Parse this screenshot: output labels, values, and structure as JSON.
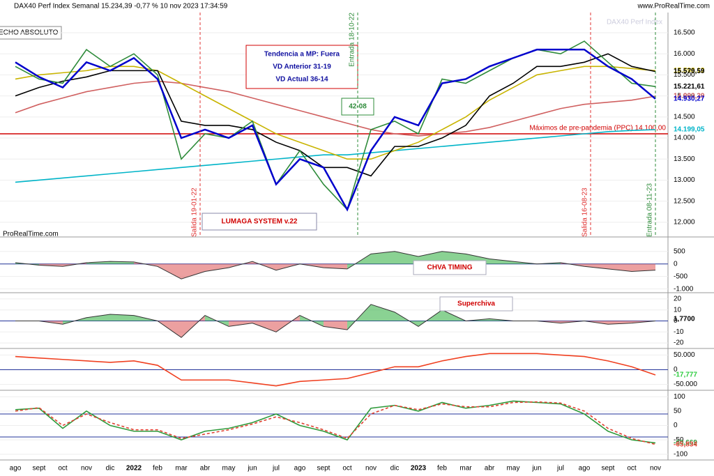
{
  "header": {
    "title": "DAX40 Perf Index Semanal 15.234,39 -0,77 % 10 nov 2023 17:34:59",
    "site": "www.ProRealTime.com",
    "watermark": "DAX40 Perf Index",
    "button": "ECHO ABSOLUTO",
    "credit": "ProRealTime.com"
  },
  "chart_data": [
    {
      "type": "line",
      "grid": true,
      "ylim": [
        11650,
        16980
      ],
      "yticks": [
        {
          "value": 16500,
          "label": "16.500"
        },
        {
          "value": 16000,
          "label": "16.000"
        },
        {
          "value": 15500,
          "label": "15.500"
        },
        {
          "value": 15000,
          "label": "15.000"
        },
        {
          "value": 14500,
          "label": "14.500"
        },
        {
          "value": 14000,
          "label": "14.000"
        },
        {
          "value": 13500,
          "label": "13.500"
        },
        {
          "value": 13000,
          "label": "13.000"
        },
        {
          "value": 12500,
          "label": "12.500"
        },
        {
          "value": 12000,
          "label": "12.000"
        }
      ],
      "series": [
        {
          "color": "#00b4c8",
          "values": [
            12950,
            13000,
            13050,
            13100,
            13150,
            13200,
            13250,
            13300,
            13350,
            13400,
            13450,
            13500,
            13550,
            13600,
            13600,
            13650,
            13700,
            13750,
            13800,
            13850,
            13900,
            13950,
            14000,
            14050,
            14100,
            14150,
            14180,
            14199.05
          ]
        },
        {
          "color": "#d06060",
          "values": [
            14600,
            14800,
            14950,
            15100,
            15200,
            15300,
            15350,
            15300,
            15200,
            15100,
            14950,
            14800,
            14650,
            14500,
            14350,
            14200,
            14100,
            14050,
            14100,
            14150,
            14250,
            14400,
            14550,
            14700,
            14800,
            14850,
            14900,
            14993.39
          ]
        },
        {
          "color": "#c8b400",
          "values": [
            15400,
            15500,
            15550,
            15600,
            15700,
            15700,
            15600,
            15300,
            15000,
            14700,
            14400,
            14100,
            13900,
            13700,
            13500,
            13500,
            13700,
            13900,
            14200,
            14500,
            14900,
            15200,
            15500,
            15600,
            15700,
            15700,
            15650,
            15598.12
          ]
        },
        {
          "color": "#000000",
          "values": [
            15000,
            15200,
            15350,
            15450,
            15600,
            15600,
            15600,
            14400,
            14300,
            14300,
            14200,
            13900,
            13700,
            13300,
            13300,
            13100,
            13800,
            13800,
            14000,
            14300,
            15000,
            15300,
            15700,
            15700,
            15800,
            16000,
            15700,
            15579.59
          ]
        },
        {
          "color": "#2e8b3a",
          "values": [
            15700,
            15400,
            15300,
            16100,
            15700,
            16000,
            15500,
            13500,
            14100,
            14000,
            14400,
            12900,
            13700,
            12900,
            12300,
            14200,
            14400,
            14100,
            15400,
            15300,
            15600,
            15900,
            16100,
            16000,
            16300,
            15800,
            15300,
            15221.61
          ]
        },
        {
          "color": "#0000cc",
          "values": [
            15800,
            15450,
            15200,
            15800,
            15600,
            15900,
            15400,
            14000,
            14200,
            14000,
            14300,
            12900,
            13500,
            13300,
            12300,
            13700,
            14500,
            14300,
            15300,
            15400,
            15700,
            15900,
            16100,
            16100,
            16100,
            15700,
            15400,
            14930.27
          ]
        }
      ],
      "tags": [
        {
          "value": 15598.12,
          "label": "15.598,12",
          "color": "#c8b400"
        },
        {
          "value": 15579.59,
          "label": "15.579,59",
          "color": "#000000"
        },
        {
          "value": 15221.61,
          "label": "15.221,61",
          "color": "#000000"
        },
        {
          "value": 14993.39,
          "label": "14.993,39",
          "color": "#d06060"
        },
        {
          "value": 14930.27,
          "label": "14.930,27",
          "color": "#0000cc"
        },
        {
          "value": 14199.05,
          "label": "14.199,05",
          "color": "#00b4c8"
        }
      ],
      "hline": {
        "value": 14100,
        "label": "Máximos de pre-pandemia (PPC) 14.100,00",
        "color": "#d00000"
      },
      "box": [
        "Tendencia a MP: Fuera",
        "VD Anterior 31-19",
        "VD Actual 36-14"
      ],
      "badge": "42-08",
      "system": "LUMAGA SYSTEM v.22",
      "events": [
        {
          "label": "Salida 19-01-22",
          "color": "#e03030"
        },
        {
          "label": "Entrada 18-10-22",
          "color": "#2e8b3a"
        },
        {
          "label": "Salida 16-08-23",
          "color": "#e03030"
        },
        {
          "label": "Entrada 08-11-23",
          "color": "#2e8b3a"
        }
      ]
    },
    {
      "type": "area",
      "title": "CHVA TIMING",
      "grid": true,
      "ylim": [
        -1150,
        1050
      ],
      "yticks": [
        500,
        0,
        -500,
        {
          "value": -1000,
          "label": "-1.000"
        }
      ],
      "hlines": [
        0
      ],
      "series": [
        {
          "color": "#3cb44b",
          "negcolor": "#e06060",
          "values": [
            50,
            -50,
            -100,
            50,
            100,
            80,
            -100,
            -600,
            -300,
            -150,
            100,
            -250,
            0,
            -150,
            -200,
            400,
            500,
            300,
            500,
            400,
            200,
            100,
            0,
            50,
            -100,
            -200,
            -300,
            -250
          ]
        }
      ]
    },
    {
      "type": "area",
      "title": "Superchiva",
      "grid": true,
      "ylim": [
        -25,
        25
      ],
      "yticks": [
        20,
        10,
        0,
        -10,
        -20
      ],
      "hlines": [
        0
      ],
      "series": [
        {
          "color": "#3cb44b",
          "negcolor": "#e06060",
          "values": [
            0,
            0,
            -3,
            3,
            6,
            5,
            0,
            -15,
            5,
            -5,
            -2,
            -10,
            5,
            -5,
            -8,
            15,
            8,
            -5,
            10,
            0,
            2,
            0,
            0,
            -2,
            0,
            -3,
            -2,
            0
          ]
        }
      ],
      "tags": [
        {
          "value": 1.77,
          "label": "1,7700",
          "color": "#000000"
        }
      ]
    },
    {
      "type": "line",
      "grid": true,
      "ylim": [
        -70000,
        70000
      ],
      "yticks": [
        {
          "value": 50000,
          "label": "50.000"
        },
        0,
        {
          "value": -50000,
          "label": "-50.000"
        }
      ],
      "hlines": [
        0
      ],
      "series": [
        {
          "color": "#f04020",
          "values": [
            45000,
            40000,
            35000,
            30000,
            25000,
            30000,
            15000,
            -35000,
            -35000,
            -35000,
            -45000,
            -55000,
            -40000,
            -35000,
            -30000,
            -10000,
            10000,
            10000,
            30000,
            45000,
            55000,
            55000,
            55000,
            50000,
            45000,
            30000,
            10000,
            -17777
          ]
        }
      ],
      "tags": [
        {
          "value": -17777,
          "label": "-17,777",
          "color": "#2ecc40"
        }
      ]
    },
    {
      "type": "line",
      "grid": true,
      "ylim": [
        -120,
        120
      ],
      "yticks": [
        100,
        50,
        0,
        -50,
        -100
      ],
      "hlines": [
        40,
        -40
      ],
      "categories": [
        "ago",
        "sept",
        "oct",
        "nov",
        "dic",
        "2022",
        "feb",
        "mar",
        "abr",
        "may",
        "jun",
        "jul",
        "ago",
        "sept",
        "oct",
        "nov",
        "dic",
        "2023",
        "feb",
        "mar",
        "abr",
        "may",
        "jun",
        "jul",
        "ago",
        "sept",
        "oct",
        "nov"
      ],
      "series": [
        {
          "color": "#2e9a3a",
          "values": [
            55,
            60,
            -10,
            50,
            0,
            -20,
            -20,
            -50,
            -20,
            -10,
            10,
            40,
            0,
            -20,
            -50,
            60,
            70,
            50,
            80,
            60,
            70,
            85,
            80,
            75,
            40,
            -20,
            -50,
            -60.669
          ]
        },
        {
          "color": "#e04030",
          "dashed": true,
          "values": [
            50,
            62,
            0,
            40,
            10,
            -15,
            -15,
            -45,
            -30,
            -15,
            5,
            30,
            10,
            -15,
            -45,
            40,
            70,
            55,
            75,
            65,
            65,
            80,
            82,
            78,
            50,
            -10,
            -45,
            -65.834
          ]
        }
      ],
      "tags": [
        {
          "value": -60.669,
          "label": "-60,669",
          "color": "#2e9a3a"
        },
        {
          "value": -65.834,
          "label": "-65,834",
          "color": "#e04030"
        }
      ]
    }
  ]
}
